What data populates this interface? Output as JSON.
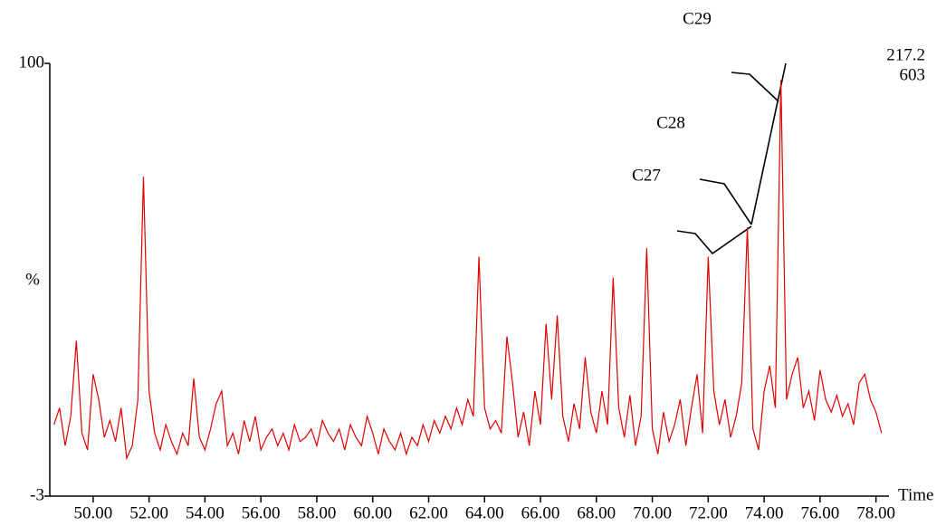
{
  "chart_data": {
    "type": "line",
    "y_label": "%",
    "x_label": "Time",
    "annotations": [
      "C29",
      "C28",
      "C27",
      "217.2",
      "603"
    ],
    "x": [
      48.6,
      48.8,
      49.0,
      49.2,
      49.4,
      49.6,
      49.8,
      50.0,
      50.2,
      50.4,
      50.6,
      50.8,
      51.0,
      51.2,
      51.4,
      51.6,
      51.8,
      52.0,
      52.2,
      52.4,
      52.6,
      52.8,
      53.0,
      53.2,
      53.4,
      53.6,
      53.8,
      54.0,
      54.2,
      54.4,
      54.6,
      54.8,
      55.0,
      55.2,
      55.4,
      55.6,
      55.8,
      56.0,
      56.2,
      56.4,
      56.6,
      56.8,
      57.0,
      57.2,
      57.4,
      57.6,
      57.8,
      58.0,
      58.2,
      58.4,
      58.6,
      58.8,
      59.0,
      59.2,
      59.4,
      59.6,
      59.8,
      60.0,
      60.2,
      60.4,
      60.6,
      60.8,
      61.0,
      61.2,
      61.4,
      61.6,
      61.8,
      62.0,
      62.2,
      62.4,
      62.6,
      62.8,
      63.0,
      63.2,
      63.4,
      63.6,
      63.8,
      64.0,
      64.2,
      64.4,
      64.6,
      64.8,
      65.0,
      65.2,
      65.4,
      65.6,
      65.8,
      66.0,
      66.2,
      66.4,
      66.6,
      66.8,
      67.0,
      67.2,
      67.4,
      67.6,
      67.8,
      68.0,
      68.2,
      68.4,
      68.6,
      68.8,
      69.0,
      69.2,
      69.4,
      69.6,
      69.8,
      70.0,
      70.2,
      70.4,
      70.6,
      70.8,
      71.0,
      71.2,
      71.4,
      71.6,
      71.8,
      72.0,
      72.2,
      72.4,
      72.6,
      72.8,
      73.0,
      73.2,
      73.4,
      73.6,
      73.8,
      74.0,
      74.2,
      74.4,
      74.6,
      74.8,
      75.0,
      75.2,
      75.4,
      75.6,
      75.8,
      76.0,
      76.2,
      76.4,
      76.6,
      76.8,
      77.0,
      77.2,
      77.4,
      77.6,
      77.8,
      78.0,
      78.2
    ],
    "series": [
      {
        "color": "#e00000",
        "values": [
          14,
          18,
          9,
          16,
          34,
          12,
          8,
          26,
          20,
          11,
          15,
          10,
          18,
          6,
          9,
          20,
          73,
          22,
          12,
          8,
          14,
          10,
          7,
          12,
          9,
          25,
          11,
          8,
          13,
          19,
          22,
          9,
          12,
          7,
          15,
          10,
          16,
          8,
          11,
          13,
          9,
          12,
          8,
          14,
          10,
          11,
          13,
          9,
          15,
          12,
          10,
          13,
          8,
          14,
          11,
          9,
          16,
          12,
          7,
          13,
          10,
          8,
          12,
          7,
          11,
          9,
          14,
          10,
          15,
          12,
          16,
          13,
          18,
          14,
          20,
          16,
          54,
          18,
          13,
          15,
          12,
          35,
          24,
          11,
          17,
          9,
          22,
          14,
          38,
          20,
          40,
          16,
          10,
          19,
          13,
          30,
          17,
          12,
          22,
          14,
          49,
          18,
          11,
          21,
          9,
          16,
          56,
          13,
          7,
          17,
          10,
          14,
          20,
          9,
          18,
          26,
          12,
          54,
          22,
          14,
          20,
          11,
          16,
          24,
          61,
          13,
          8,
          22,
          28,
          18,
          96,
          20,
          26,
          30,
          18,
          22,
          15,
          27,
          20,
          17,
          21,
          16,
          19,
          14,
          24,
          26,
          20,
          17,
          12
        ]
      }
    ],
    "xlim": [
      48.45,
      78.4
    ],
    "ylim": [
      -3,
      100
    ],
    "xticks": [
      {
        "value": 50,
        "label": "50.00"
      },
      {
        "value": 52,
        "label": "52.00"
      },
      {
        "value": 54,
        "label": "54.00"
      },
      {
        "value": 56,
        "label": "56.00"
      },
      {
        "value": 58,
        "label": "58.00"
      },
      {
        "value": 60,
        "label": "60.00"
      },
      {
        "value": 62,
        "label": "62.00"
      },
      {
        "value": 64,
        "label": "64.00"
      },
      {
        "value": 66,
        "label": "66.00"
      },
      {
        "value": 68,
        "label": "68.00"
      },
      {
        "value": 70,
        "label": "70.00"
      },
      {
        "value": 72,
        "label": "72.00"
      },
      {
        "value": 74,
        "label": "74.00"
      },
      {
        "value": 76,
        "label": "76.00"
      },
      {
        "value": 78,
        "label": "78.00"
      }
    ],
    "yticks": [
      -3,
      100
    ]
  }
}
